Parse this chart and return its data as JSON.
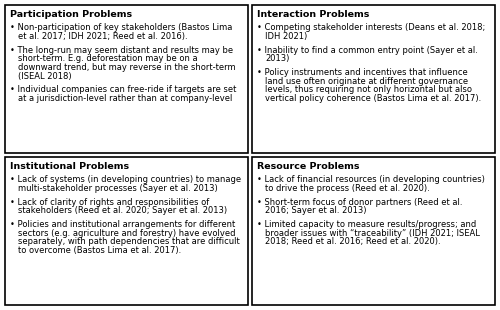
{
  "panels": [
    {
      "title": "Participation Problems",
      "bullets": [
        "Non-participation of key stakeholders (Bastos Lima\net al. 2017; IDH 2021; Reed et al. 2016).",
        "The long-run may seem distant and results may be\nshort-term. E.g. deforestation may be on a\ndownward trend, but may reverse in the short-term\n(ISEAL 2018)",
        "Individual companies can free-ride if targets are set\nat a jurisdiction-level rather than at company-level"
      ]
    },
    {
      "title": "Interaction Problems",
      "bullets": [
        "Competing stakeholder interests (Deans et al. 2018;\nIDH 2021)",
        "Inability to find a common entry point (Sayer et al.\n2013)",
        "Policy instruments and incentives that influence\nland use often originate at different governance\nlevels, thus requiring not only horizontal but also\nvertical policy coherence (Bastos Lima et al. 2017)."
      ]
    },
    {
      "title": "Institutional Problems",
      "bullets": [
        "Lack of systems (in developing countries) to manage\nmulti-stakeholder processes (Sayer et al. 2013)",
        "Lack of clarity of rights and responsibilities of\nstakeholders (Reed et al. 2020; Sayer et al. 2013)",
        "Policies and institutional arrangements for different\nsectors (e.g. agriculture and forestry) have evolved\nseparately, with path dependencies that are difficult\nto overcome (Bastos Lima et al. 2017)."
      ]
    },
    {
      "title": "Resource Problems",
      "bullets": [
        "Lack of financial resources (in developing countries)\nto drive the process (Reed et al. 2020).",
        "Short-term focus of donor partners (Reed et al.\n2016; Sayer et al. 2013)",
        "Limited capacity to measure results/progress; and\nbroader issues with “traceability” (IDH 2021; ISEAL\n2018; Reed et al. 2016; Reed et al. 2020)."
      ]
    }
  ],
  "background_color": "#ffffff",
  "box_edge_color": "#000000",
  "title_fontsize": 6.8,
  "bullet_fontsize": 6.0,
  "bullet_char": "•"
}
